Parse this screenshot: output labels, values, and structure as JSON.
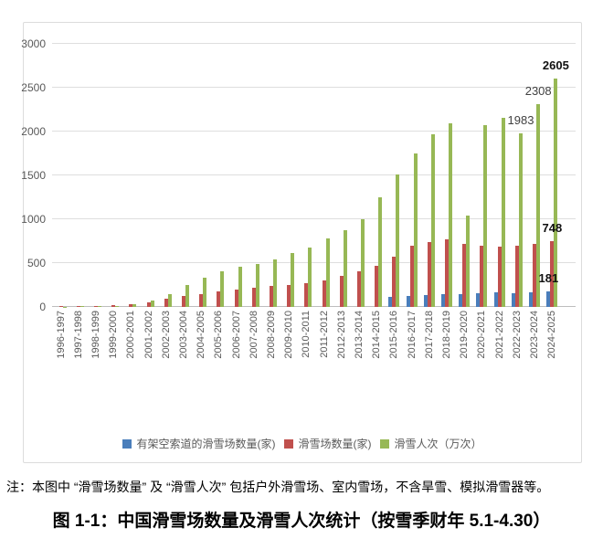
{
  "note": "注：本图中 “滑雪场数量” 及 “滑雪人次” 包括户外滑雪场、室内雪场，不含旱雪、模拟滑雪器等。",
  "caption": "图 1-1：中国滑雪场数量及滑雪人次统计（按雪季财年 5.1-4.30）",
  "chart_data": {
    "type": "bar",
    "title": "",
    "xlabel": "",
    "ylabel": "",
    "ylim": [
      0,
      3000
    ],
    "yticks": [
      0,
      500,
      1000,
      1500,
      2000,
      2500,
      3000
    ],
    "grid": true,
    "legend_position": "bottom",
    "categories": [
      "1996-1997",
      "1997-1998",
      "1998-1999",
      "1999-2000",
      "2000-2001",
      "2001-2002",
      "2002-2003",
      "2003-2004",
      "2004-2005",
      "2005-2006",
      "2006-2007",
      "2007-2008",
      "2008-2009",
      "2009-2010",
      "2010-2011",
      "2011-2012",
      "2012-2013",
      "2013-2014",
      "2014-2015",
      "2015-2016",
      "2016-2017",
      "2017-2018",
      "2018-2019",
      "2019-2020",
      "2020-2021",
      "2021-2022",
      "2022-2023",
      "2023-2024",
      "2024-2025"
    ],
    "series": [
      {
        "name": "有架空索道的滑雪场数量(家)",
        "color": "#4a7ebb",
        "values": [
          0,
          0,
          0,
          0,
          0,
          0,
          0,
          0,
          0,
          0,
          0,
          0,
          0,
          0,
          0,
          0,
          0,
          0,
          0,
          110,
          125,
          135,
          145,
          150,
          155,
          162,
          158,
          170,
          181
        ]
      },
      {
        "name": "滑雪场数量(家)",
        "color": "#c0504d",
        "values": [
          9,
          11,
          14,
          21,
          35,
          50,
          95,
          125,
          150,
          175,
          200,
          220,
          235,
          250,
          270,
          300,
          350,
          410,
          470,
          568,
          703,
          742,
          770,
          715,
          695,
          692,
          693,
          719,
          748
        ]
      },
      {
        "name": "滑雪人次（万次）",
        "color": "#97b855",
        "values": [
          5,
          8,
          10,
          15,
          30,
          75,
          150,
          250,
          330,
          410,
          460,
          490,
          540,
          610,
          680,
          780,
          870,
          1000,
          1250,
          1510,
          1750,
          1970,
          2090,
          1045,
          2076,
          2154,
          1983,
          2308,
          2605
        ]
      }
    ],
    "point_labels": [
      {
        "series": 2,
        "category": "2022-2023",
        "text": "1983",
        "bold": false
      },
      {
        "series": 2,
        "category": "2023-2024",
        "text": "2308",
        "bold": false
      },
      {
        "series": 2,
        "category": "2024-2025",
        "text": "2605",
        "bold": true
      },
      {
        "series": 1,
        "category": "2024-2025",
        "text": "748",
        "bold": true
      },
      {
        "series": 0,
        "category": "2024-2025",
        "text": "181",
        "bold": true
      }
    ]
  }
}
